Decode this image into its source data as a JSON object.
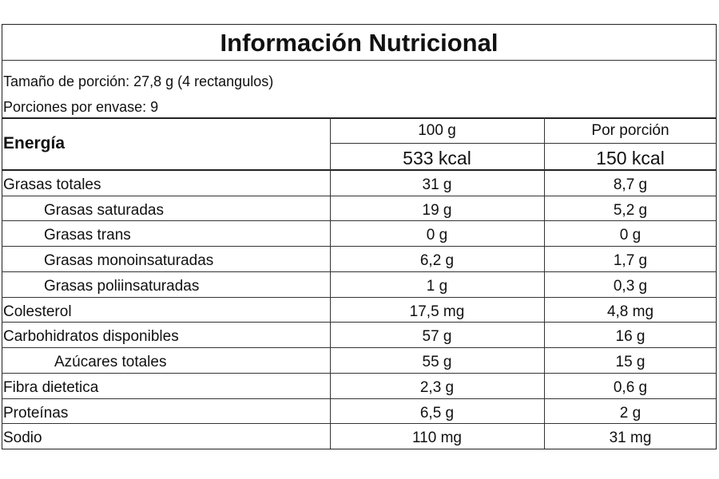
{
  "title": "Información Nutricional",
  "serving": [
    "Tamaño de porción: 27,8 g (4 rectangulos)",
    "Porciones por envase: 9"
  ],
  "table": {
    "energy_label": "Energía",
    "columns": [
      "100 g",
      "Por porción"
    ],
    "energy": [
      "533 kcal",
      "150 kcal"
    ],
    "rows": [
      [
        "Grasas totales",
        "31 g",
        "8,7 g"
      ],
      [
        "Grasas saturadas",
        "19 g",
        "5,2 g"
      ],
      [
        "Grasas trans",
        "0 g",
        "0 g"
      ],
      [
        "Grasas monoinsaturadas",
        "6,2 g",
        "1,7 g"
      ],
      [
        "Grasas poliinsaturadas",
        "1 g",
        "0,3 g"
      ],
      [
        "Colesterol",
        "17,5 mg",
        "4,8 mg"
      ],
      [
        "Carbohidratos disponibles",
        "57 g",
        "16 g"
      ],
      [
        "Azúcares totales",
        "55 g",
        "15 g"
      ],
      [
        "Fibra dietetica",
        "2,3 g",
        "0,6 g"
      ],
      [
        "Proteínas",
        "6,5 g",
        "2 g"
      ],
      [
        "Sodio",
        "110 mg",
        "31 mg"
      ]
    ]
  }
}
